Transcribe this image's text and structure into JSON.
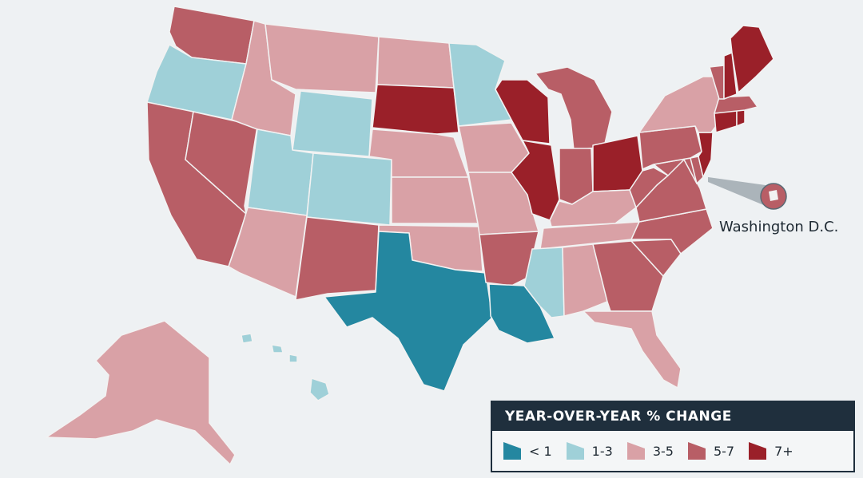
{
  "legend": {
    "title": "YEAR-OVER-YEAR % CHANGE",
    "items": [
      {
        "label": "< 1",
        "color": "#2487a0"
      },
      {
        "label": "1-3",
        "color": "#9fd0d8"
      },
      {
        "label": "3-5",
        "color": "#d9a1a6"
      },
      {
        "label": "5-7",
        "color": "#b85e66"
      },
      {
        "label": "7+",
        "color": "#9a2029"
      }
    ]
  },
  "callout": {
    "label": "Washington D.C.",
    "color": "#b85e66"
  },
  "states": {
    "WA": {
      "bin": "5-7"
    },
    "OR": {
      "bin": "1-3"
    },
    "CA": {
      "bin": "5-7"
    },
    "NV": {
      "bin": "5-7"
    },
    "ID": {
      "bin": "3-5"
    },
    "MT": {
      "bin": "3-5"
    },
    "WY": {
      "bin": "1-3"
    },
    "UT": {
      "bin": "1-3"
    },
    "AZ": {
      "bin": "3-5"
    },
    "CO": {
      "bin": "1-3"
    },
    "NM": {
      "bin": "5-7"
    },
    "ND": {
      "bin": "3-5"
    },
    "SD": {
      "bin": "7+"
    },
    "NE": {
      "bin": "3-5"
    },
    "KS": {
      "bin": "3-5"
    },
    "OK": {
      "bin": "3-5"
    },
    "TX": {
      "bin": "< 1"
    },
    "MN": {
      "bin": "1-3"
    },
    "IA": {
      "bin": "3-5"
    },
    "MO": {
      "bin": "3-5"
    },
    "AR": {
      "bin": "5-7"
    },
    "LA": {
      "bin": "< 1"
    },
    "WI": {
      "bin": "7+"
    },
    "IL": {
      "bin": "7+"
    },
    "MI": {
      "bin": "5-7"
    },
    "IN": {
      "bin": "5-7"
    },
    "OH": {
      "bin": "7+"
    },
    "KY": {
      "bin": "3-5"
    },
    "TN": {
      "bin": "3-5"
    },
    "MS": {
      "bin": "1-3"
    },
    "AL": {
      "bin": "3-5"
    },
    "GA": {
      "bin": "5-7"
    },
    "FL": {
      "bin": "3-5"
    },
    "SC": {
      "bin": "5-7"
    },
    "NC": {
      "bin": "5-7"
    },
    "VA": {
      "bin": "5-7"
    },
    "WV": {
      "bin": "5-7"
    },
    "PA": {
      "bin": "5-7"
    },
    "NY": {
      "bin": "3-5"
    },
    "NJ": {
      "bin": "7+"
    },
    "DE": {
      "bin": "5-7"
    },
    "MD": {
      "bin": "5-7"
    },
    "CT": {
      "bin": "7+"
    },
    "RI": {
      "bin": "7+"
    },
    "MA": {
      "bin": "5-7"
    },
    "VT": {
      "bin": "5-7"
    },
    "NH": {
      "bin": "7+"
    },
    "ME": {
      "bin": "7+"
    },
    "AK": {
      "bin": "3-5"
    },
    "HI": {
      "bin": "1-3"
    }
  }
}
